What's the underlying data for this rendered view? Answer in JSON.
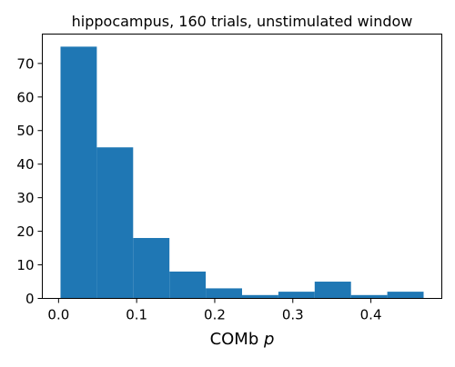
{
  "chart_data": {
    "type": "bar",
    "title": "hippocampus, 160 trials, unstimulated window",
    "xlabel": "COMb",
    "xlabel_italic": "p",
    "ylabel": "",
    "bar_color": "#1f77b4",
    "bins": [
      {
        "x0": 0.0025,
        "x1": 0.049,
        "count": 75
      },
      {
        "x0": 0.049,
        "x1": 0.0955,
        "count": 45
      },
      {
        "x0": 0.0955,
        "x1": 0.142,
        "count": 18
      },
      {
        "x0": 0.142,
        "x1": 0.1885,
        "count": 8
      },
      {
        "x0": 0.1885,
        "x1": 0.235,
        "count": 3
      },
      {
        "x0": 0.235,
        "x1": 0.2815,
        "count": 1
      },
      {
        "x0": 0.2815,
        "x1": 0.328,
        "count": 2
      },
      {
        "x0": 0.328,
        "x1": 0.3745,
        "count": 5
      },
      {
        "x0": 0.3745,
        "x1": 0.421,
        "count": 1
      },
      {
        "x0": 0.421,
        "x1": 0.4675,
        "count": 2
      }
    ],
    "xlim": [
      -0.0208,
      0.4908
    ],
    "ylim": [
      0,
      78.75
    ],
    "xticks": [
      0.0,
      0.1,
      0.2,
      0.3,
      0.4
    ],
    "xtick_labels": [
      "0.0",
      "0.1",
      "0.2",
      "0.3",
      "0.4"
    ],
    "yticks": [
      0,
      10,
      20,
      30,
      40,
      50,
      60,
      70
    ],
    "ytick_labels": [
      "0",
      "10",
      "20",
      "30",
      "40",
      "50",
      "60",
      "70"
    ],
    "grid": false,
    "legend": "none"
  }
}
